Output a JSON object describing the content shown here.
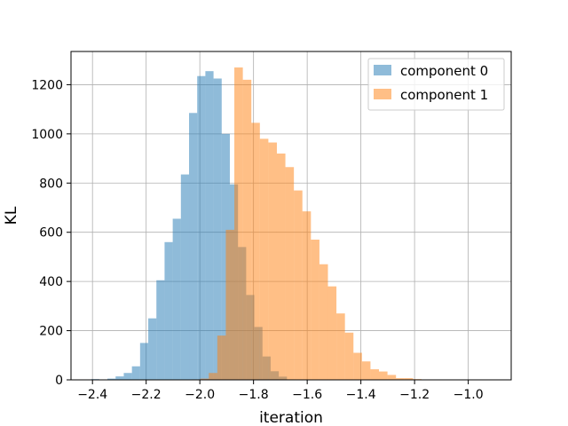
{
  "chart_data": {
    "type": "bar",
    "title": "",
    "xlabel": "iteration",
    "ylabel": "KL",
    "xlim": [
      -2.48,
      -0.84
    ],
    "ylim": [
      0,
      1335
    ],
    "x_ticks": [
      -2.4,
      -2.2,
      -2.0,
      -1.8,
      -1.6,
      -1.4,
      -1.2,
      -1.0
    ],
    "x_tick_labels": [
      "−2.4",
      "−2.2",
      "−2.0",
      "−1.8",
      "−1.6",
      "−1.4",
      "−1.2",
      "−1.0"
    ],
    "y_ticks": [
      0,
      200,
      400,
      600,
      800,
      1000,
      1200
    ],
    "y_tick_labels": [
      "0",
      "200",
      "400",
      "600",
      "800",
      "1000",
      "1200"
    ],
    "grid": true,
    "legend_position": "top-right",
    "series": [
      {
        "name": "component 0",
        "color": "#1f77b4",
        "alpha": 0.5,
        "bin_start": -2.405,
        "bin_width": 0.0304,
        "values": [
          3,
          0,
          5,
          14,
          28,
          55,
          150,
          250,
          405,
          560,
          655,
          835,
          1085,
          1235,
          1255,
          1225,
          1000,
          795,
          540,
          345,
          215,
          95,
          35,
          13,
          2
        ]
      },
      {
        "name": "component 1",
        "color": "#ff7f0e",
        "alpha": 0.5,
        "bin_start": -2.03,
        "bin_width": 0.0317,
        "values": [
          2,
          5,
          28,
          180,
          610,
          1270,
          1220,
          1045,
          980,
          965,
          920,
          865,
          770,
          685,
          570,
          470,
          380,
          270,
          192,
          110,
          75,
          43,
          34,
          20,
          7,
          7,
          3
        ]
      }
    ]
  }
}
